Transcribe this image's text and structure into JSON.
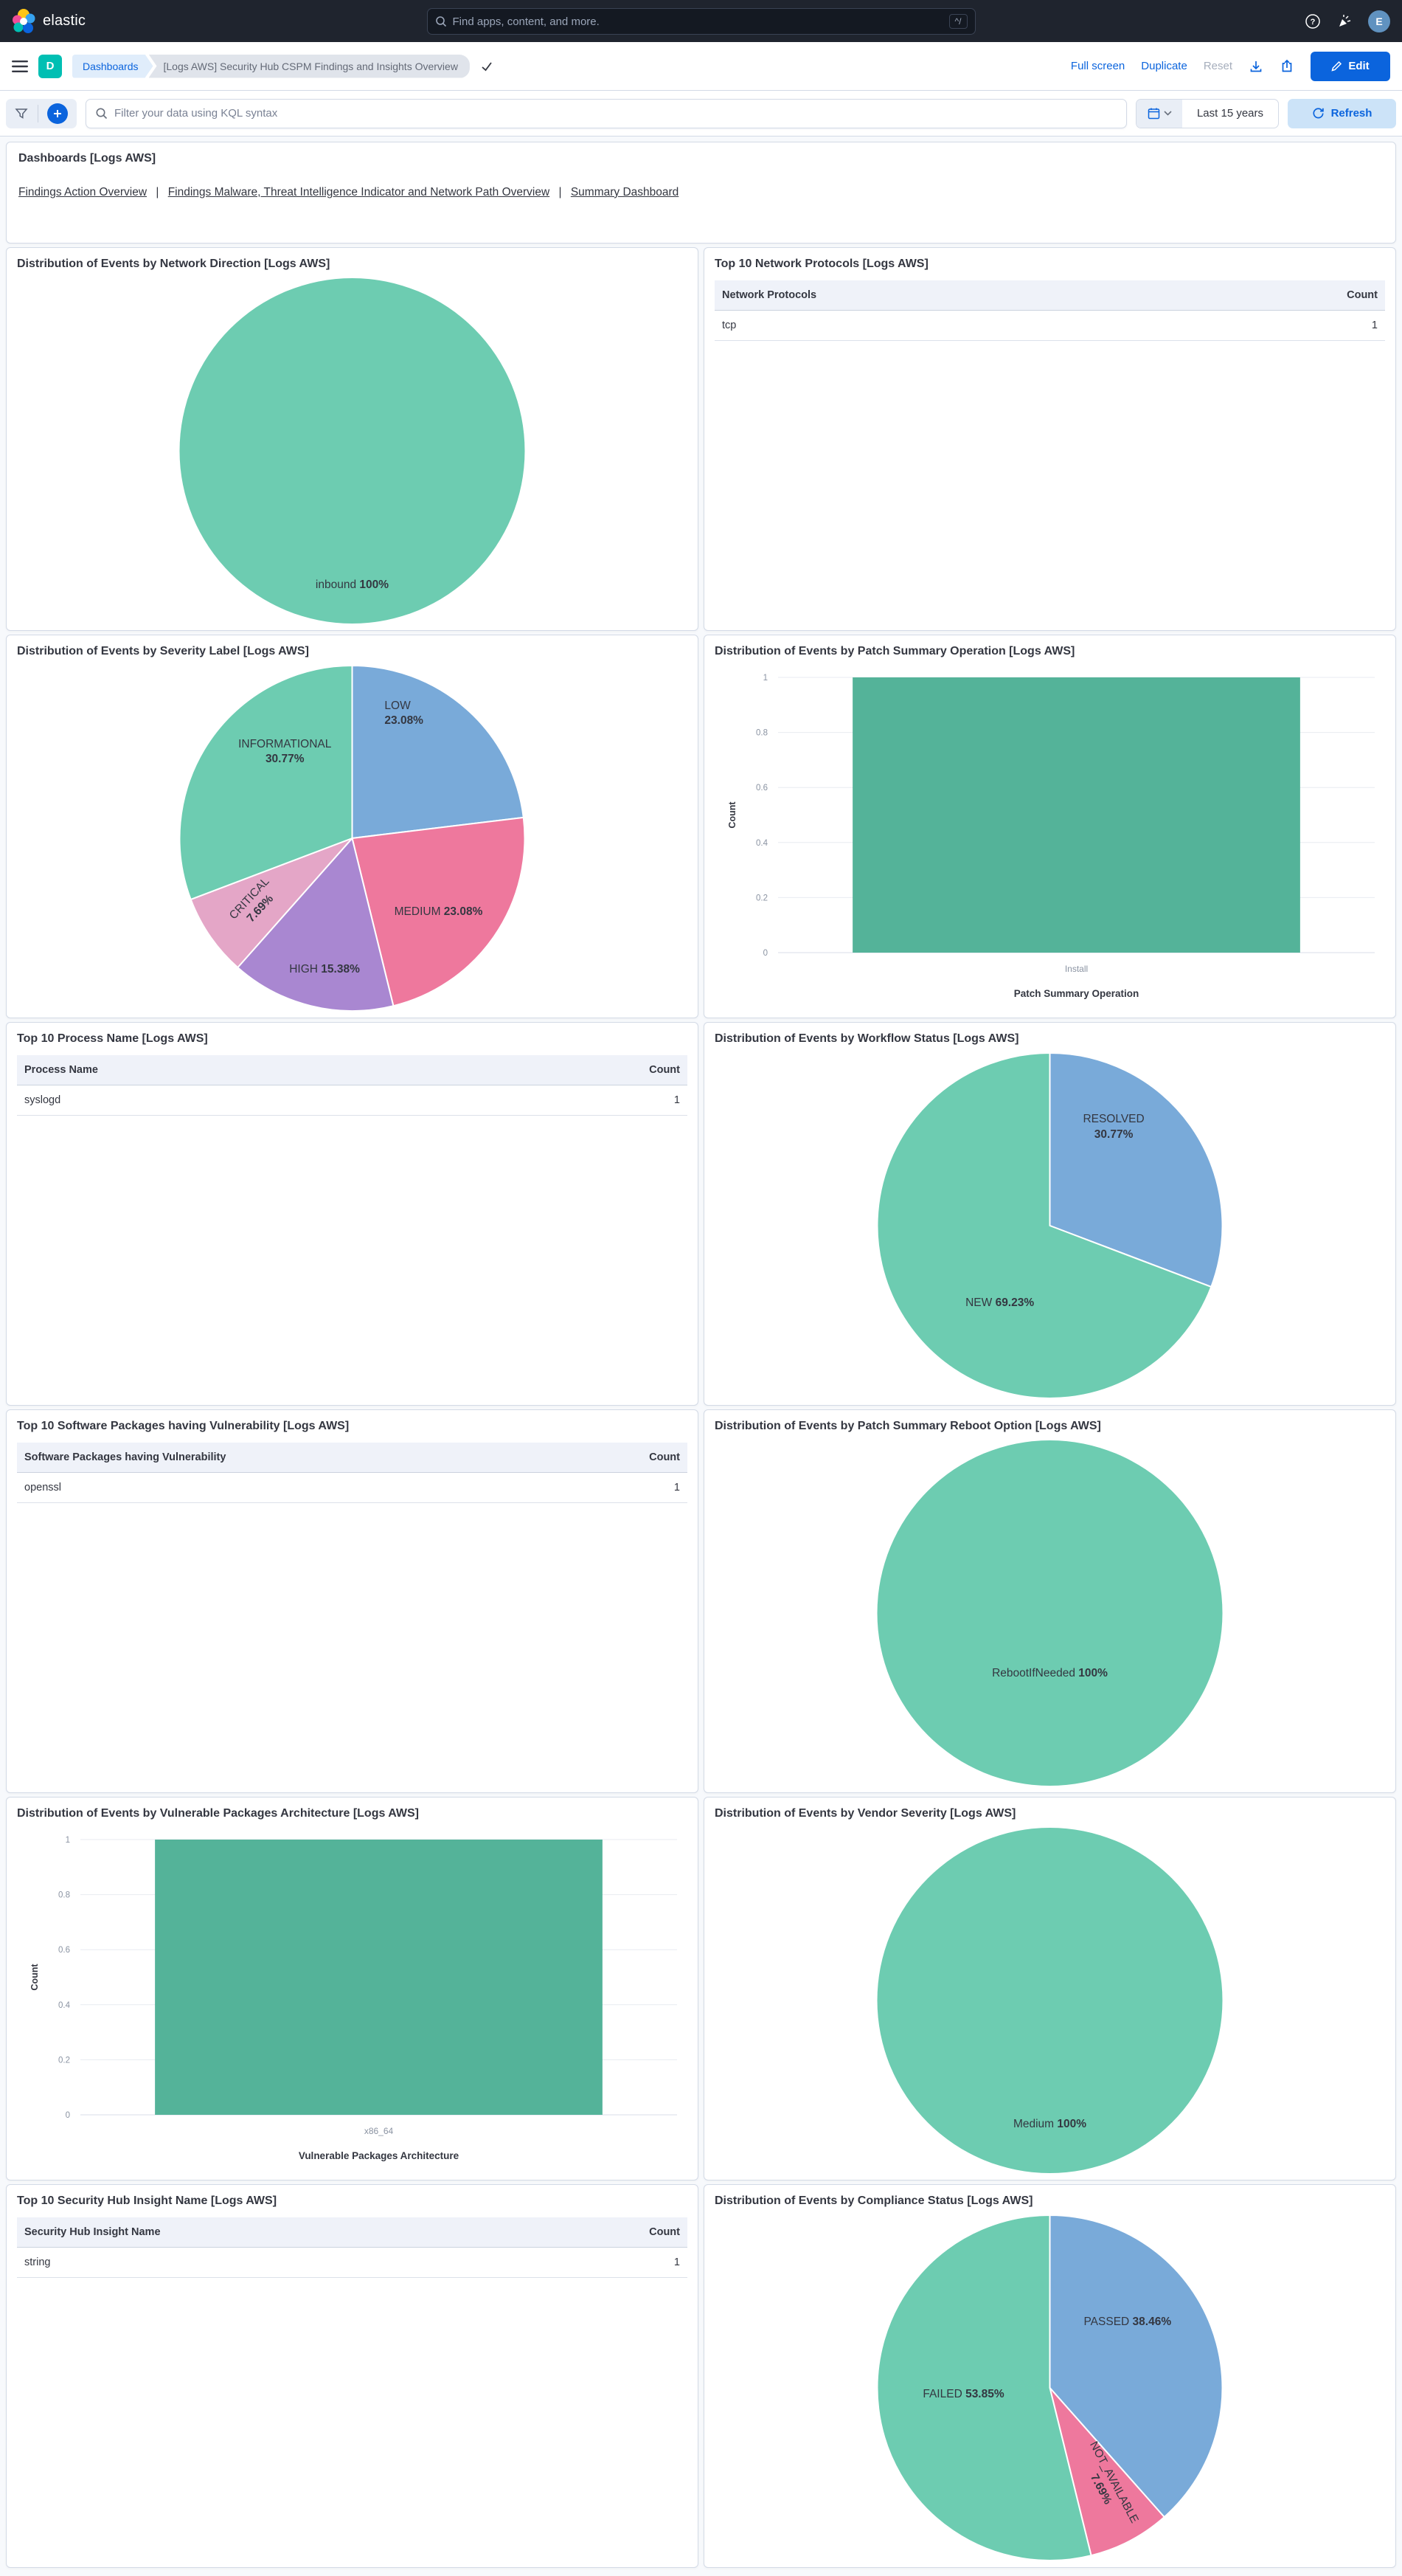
{
  "header": {
    "brand": "elastic",
    "search": {
      "placeholder": "Find apps, content, and more.",
      "shortcut": "^/"
    },
    "avatar_initial": "E"
  },
  "navbar": {
    "space_badge": "D",
    "breadcrumbs": {
      "root": "Dashboards",
      "current": "[Logs AWS] Security Hub CSPM Findings and Insights Overview"
    },
    "actions": {
      "full_screen": "Full screen",
      "duplicate": "Duplicate",
      "reset": "Reset",
      "edit": "Edit"
    }
  },
  "querybar": {
    "search_placeholder": "Filter your data using KQL syntax",
    "time_range": "Last 15 years",
    "refresh_label": "Refresh"
  },
  "links_panel": {
    "title": "Dashboards [Logs AWS]",
    "separator": "|",
    "links": [
      "Findings Action Overview",
      "Findings Malware, Threat Intelligence Indicator and Network Path Overview",
      "Summary Dashboard"
    ]
  },
  "tables": [
    {
      "title": "Top 10 Network Protocols [Logs AWS]",
      "columns": [
        "Network Protocols",
        "Count"
      ],
      "rows": [
        [
          "tcp",
          "1"
        ]
      ]
    },
    {
      "title": "Top 10 Process Name [Logs AWS]",
      "columns": [
        "Process Name",
        "Count"
      ],
      "rows": [
        [
          "syslogd",
          "1"
        ]
      ]
    },
    {
      "title": "Top 10 Software Packages having Vulnerability [Logs AWS]",
      "columns": [
        "Software Packages having Vulnerability",
        "Count"
      ],
      "rows": [
        [
          "openssl",
          "1"
        ]
      ]
    },
    {
      "title": "Top 10 Security Hub Insight Name [Logs AWS]",
      "columns": [
        "Security Hub Insight Name",
        "Count"
      ],
      "rows": [
        [
          "string",
          "1"
        ]
      ]
    }
  ],
  "chart_data": [
    {
      "type": "pie",
      "title": "Distribution of Events by Network Direction [Logs AWS]",
      "slices": [
        {
          "label": "inbound",
          "value": 100,
          "display": "100%",
          "color": "#6DCCB1",
          "label_dx": 0,
          "label_dy": 0.78,
          "two_line": false,
          "rotate": 0
        }
      ]
    },
    {
      "type": "pie",
      "title": "Distribution of Events by Severity Label [Logs AWS]",
      "slices": [
        {
          "label": "LOW",
          "value": 23.08,
          "display": "23.08%",
          "color": "#79AAD9",
          "label_dx": 0.3,
          "label_dy": -0.72,
          "two_line": true,
          "rotate": 0,
          "align": "left"
        },
        {
          "label": "MEDIUM",
          "value": 23.08,
          "display": "23.08%",
          "color": "#EE789D",
          "label_dx": 0.5,
          "label_dy": 0.43,
          "two_line": false,
          "rotate": 0
        },
        {
          "label": "HIGH",
          "value": 15.38,
          "display": "15.38%",
          "color": "#A987D1",
          "label_dx": -0.16,
          "label_dy": 0.76,
          "two_line": false,
          "rotate": 0
        },
        {
          "label": "CRITICAL",
          "value": 7.69,
          "display": "7.69%",
          "color": "#E4A6C7",
          "label_dx": -0.56,
          "label_dy": 0.38,
          "two_line": true,
          "rotate": -47
        },
        {
          "label": "INFORMATIONAL",
          "value": 30.77,
          "display": "30.77%",
          "color": "#6DCCB1",
          "label_dx": -0.39,
          "label_dy": -0.5,
          "two_line": true,
          "rotate": 0
        }
      ]
    },
    {
      "type": "bar",
      "title": "Distribution of Events by Patch Summary Operation [Logs AWS]",
      "categories": [
        "Install"
      ],
      "values": [
        1
      ],
      "ylabel": "Count",
      "xlabel": "Patch Summary Operation",
      "ylim": [
        0,
        1
      ],
      "yticks": [
        0,
        0.2,
        0.4,
        0.6,
        0.8,
        1
      ],
      "color": "#54B399"
    },
    {
      "type": "pie",
      "title": "Distribution of Events by Workflow Status [Logs AWS]",
      "slices": [
        {
          "label": "RESOLVED",
          "value": 30.77,
          "display": "30.77%",
          "color": "#79AAD9",
          "label_dx": 0.37,
          "label_dy": -0.57,
          "two_line": true,
          "rotate": 0
        },
        {
          "label": "NEW",
          "value": 69.23,
          "display": "69.23%",
          "color": "#6DCCB1",
          "label_dx": -0.29,
          "label_dy": 0.45,
          "two_line": false,
          "rotate": 0
        }
      ]
    },
    {
      "type": "pie",
      "title": "Distribution of Events by Patch Summary Reboot Option [Logs AWS]",
      "slices": [
        {
          "label": "RebootIfNeeded",
          "value": 100,
          "display": "100%",
          "color": "#6DCCB1",
          "label_dx": 0,
          "label_dy": 0.35,
          "two_line": false,
          "rotate": 0
        }
      ]
    },
    {
      "type": "bar",
      "title": "Distribution of Events by Vulnerable Packages Architecture [Logs AWS]",
      "categories": [
        "x86_64"
      ],
      "values": [
        1
      ],
      "ylabel": "Count",
      "xlabel": "Vulnerable Packages Architecture",
      "ylim": [
        0,
        1
      ],
      "yticks": [
        0,
        0.2,
        0.4,
        0.6,
        0.8,
        1
      ],
      "color": "#54B399"
    },
    {
      "type": "pie",
      "title": "Distribution of Events by Vendor Severity [Logs AWS]",
      "slices": [
        {
          "label": "Medium",
          "value": 100,
          "display": "100%",
          "color": "#6DCCB1",
          "label_dx": 0,
          "label_dy": 0.72,
          "two_line": false,
          "rotate": 0
        }
      ]
    },
    {
      "type": "pie",
      "title": "Distribution of Events by Compliance Status [Logs AWS]",
      "slices": [
        {
          "label": "PASSED",
          "value": 38.46,
          "display": "38.46%",
          "color": "#79AAD9",
          "label_dx": 0.45,
          "label_dy": -0.38,
          "two_line": false,
          "rotate": 0
        },
        {
          "label": "NOT_AVAILABLE",
          "value": 7.69,
          "display": "7.69%",
          "color": "#EE789D",
          "label_dx": 0.33,
          "label_dy": 0.57,
          "two_line": true,
          "rotate": 62
        },
        {
          "label": "FAILED",
          "value": 53.85,
          "display": "53.85%",
          "color": "#6DCCB1",
          "label_dx": -0.5,
          "label_dy": 0.04,
          "two_line": false,
          "rotate": 0
        }
      ]
    }
  ],
  "colors": {
    "pie_green": "#6DCCB1",
    "pie_blue": "#79AAD9",
    "pie_pink": "#EE789D",
    "pie_purple": "#A987D1",
    "pie_light_pink": "#E4A6C7",
    "bar_green": "#54B399",
    "primary": "#0B64DD",
    "space_teal": "#00BFB3",
    "header_bg": "#1F242E"
  }
}
